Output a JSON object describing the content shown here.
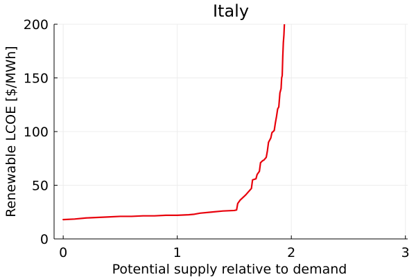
{
  "chart_data": {
    "type": "line",
    "title": "Italy",
    "xlabel": "Potential supply relative to demand",
    "ylabel": "Renewable LCOE [$/MWh]",
    "xlim": [
      -0.08,
      3.02
    ],
    "ylim": [
      0,
      200
    ],
    "xticks": [
      0,
      1,
      2,
      3
    ],
    "yticks": [
      0,
      50,
      100,
      150,
      200
    ],
    "grid": true,
    "legend": "none",
    "series": [
      {
        "color": "#e8000b",
        "x": [
          0.0,
          0.1,
          0.2,
          0.3,
          0.4,
          0.5,
          0.6,
          0.7,
          0.8,
          0.9,
          1.0,
          1.1,
          1.15,
          1.2,
          1.3,
          1.4,
          1.5,
          1.52,
          1.53,
          1.55,
          1.6,
          1.65,
          1.66,
          1.69,
          1.7,
          1.72,
          1.73,
          1.75,
          1.76,
          1.78,
          1.79,
          1.8,
          1.82,
          1.83,
          1.85,
          1.86,
          1.87,
          1.88,
          1.89,
          1.9,
          1.91,
          1.915,
          1.92,
          1.925,
          1.93,
          1.935,
          1.94
        ],
        "y": [
          18,
          18.5,
          19.5,
          20,
          20.5,
          21,
          21,
          21.5,
          21.5,
          22,
          22,
          22.5,
          23,
          24,
          25,
          26,
          26.5,
          27,
          33,
          36,
          41,
          47,
          55,
          56,
          60,
          63,
          71,
          73,
          73.5,
          76,
          82,
          90,
          94,
          99,
          101,
          108,
          114,
          121,
          123,
          136,
          140,
          150,
          152,
          170,
          183,
          190,
          202
        ]
      }
    ]
  }
}
